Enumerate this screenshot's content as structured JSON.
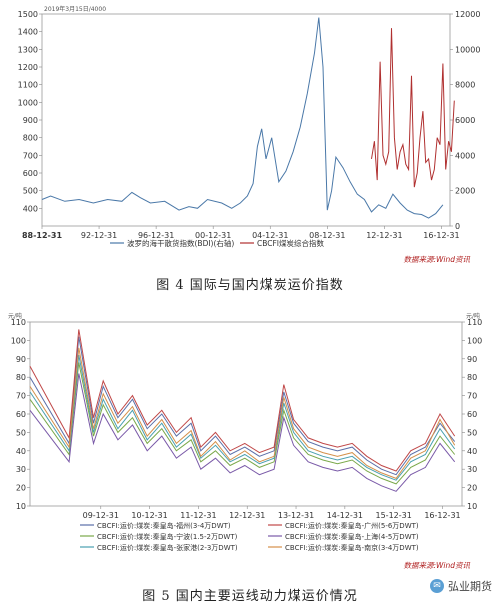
{
  "chart_data": [
    {
      "type": "line",
      "title": "图4 国际与国内煤炭运价指数",
      "top_note": "2019年3月15日/4000",
      "x_ticks": [
        "88-12-31",
        "92-12-31",
        "96-12-31",
        "00-12-31",
        "04-12-31",
        "08-12-31",
        "12-12-31",
        "16-12-31"
      ],
      "y_left": {
        "min": 300,
        "max": 1500,
        "ticks": [
          400,
          500,
          600,
          700,
          800,
          900,
          1000,
          1100,
          1200,
          1300,
          1400,
          1500
        ]
      },
      "y_right": {
        "min": 0,
        "max": 12000,
        "ticks": [
          0,
          2000,
          4000,
          6000,
          8000,
          10000,
          12000
        ]
      },
      "grid": false,
      "legend_position": "bottom",
      "source": "数据来源:Wind资讯",
      "series": [
        {
          "name": "波罗的海干散货指数(BDI)(右轴)",
          "axis": "right",
          "color": "#4a78a8",
          "x": [
            1988.9,
            1989.5,
            1990.5,
            1991.5,
            1992.5,
            1993.5,
            1994.5,
            1995.2,
            1995.8,
            1996.5,
            1997.5,
            1998.5,
            1999.2,
            1999.8,
            2000.5,
            2001.5,
            2002.2,
            2002.8,
            2003.3,
            2003.7,
            2004.0,
            2004.3,
            2004.6,
            2005.0,
            2005.5,
            2006.0,
            2006.5,
            2007.0,
            2007.5,
            2008.0,
            2008.3,
            2008.6,
            2008.9,
            2009.2,
            2009.5,
            2010.0,
            2010.5,
            2011.0,
            2011.5,
            2012.0,
            2012.5,
            2013.0,
            2013.5,
            2014.0,
            2014.5,
            2015.0,
            2015.5,
            2016.0,
            2016.5,
            2017.0
          ],
          "y": [
            1500,
            1700,
            1400,
            1500,
            1300,
            1500,
            1400,
            1900,
            1600,
            1300,
            1400,
            900,
            1100,
            1000,
            1500,
            1300,
            1000,
            1300,
            1700,
            2400,
            4500,
            5500,
            3800,
            5000,
            2500,
            3100,
            4200,
            5600,
            7500,
            9800,
            11800,
            9000,
            900,
            2000,
            3900,
            3300,
            2500,
            1800,
            1500,
            800,
            1200,
            1000,
            1800,
            1300,
            900,
            700,
            650,
            450,
            700,
            1200
          ]
        },
        {
          "name": "CBCFI煤炭综合指数",
          "axis": "left",
          "color": "#b03030",
          "x": [
            2012.0,
            2012.2,
            2012.4,
            2012.6,
            2012.8,
            2013.0,
            2013.2,
            2013.4,
            2013.6,
            2013.8,
            2014.0,
            2014.2,
            2014.4,
            2014.6,
            2014.8,
            2015.0,
            2015.2,
            2015.4,
            2015.6,
            2015.8,
            2016.0,
            2016.2,
            2016.4,
            2016.6,
            2016.8,
            2017.0,
            2017.2,
            2017.4,
            2017.6,
            2017.8
          ],
          "y": [
            680,
            780,
            560,
            1230,
            700,
            650,
            720,
            1420,
            800,
            620,
            720,
            760,
            650,
            620,
            1150,
            520,
            600,
            800,
            950,
            660,
            680,
            560,
            620,
            800,
            760,
            1220,
            620,
            780,
            720,
            1010
          ]
        }
      ]
    },
    {
      "type": "line",
      "title": "图5 国内主要运线动力煤运价情况",
      "y_label_left": "元/吨",
      "y_label_right": "元/吨",
      "x_ticks": [
        "09-12-31",
        "10-12-31",
        "11-12-31",
        "12-12-31",
        "13-12-31",
        "14-12-31",
        "15-12-31",
        "16-12-31"
      ],
      "y_left": {
        "min": 10,
        "max": 110,
        "ticks": [
          10,
          20,
          30,
          40,
          50,
          60,
          70,
          80,
          90,
          100,
          110
        ]
      },
      "y_right": {
        "min": 10,
        "max": 110,
        "ticks": [
          10,
          20,
          30,
          40,
          50,
          60,
          70,
          80,
          90,
          100,
          110
        ]
      },
      "grid": false,
      "legend_position": "bottom",
      "source": "数据来源:Wind资讯",
      "series": [
        {
          "name": "CBCFI:运价:煤炭:秦皇岛-福州(3-4万DWT)",
          "color": "#5b6fa8",
          "x": [
            2008.5,
            2009.3,
            2009.5,
            2009.8,
            2010.0,
            2010.3,
            2010.6,
            2010.9,
            2011.2,
            2011.5,
            2011.8,
            2012.0,
            2012.3,
            2012.6,
            2012.9,
            2013.2,
            2013.5,
            2013.7,
            2013.9,
            2014.2,
            2014.5,
            2014.8,
            2015.1,
            2015.4,
            2015.7,
            2016.0,
            2016.3,
            2016.6,
            2016.9,
            2017.2
          ],
          "y": [
            80,
            44,
            102,
            55,
            75,
            58,
            68,
            52,
            60,
            48,
            55,
            40,
            48,
            38,
            42,
            37,
            40,
            72,
            55,
            45,
            42,
            40,
            42,
            35,
            30,
            27,
            38,
            42,
            55,
            45
          ]
        },
        {
          "name": "CBCFI:运价:煤炭:秦皇岛-广州(5-6万DWT)",
          "color": "#c04848",
          "x": [
            2008.5,
            2009.3,
            2009.5,
            2009.8,
            2010.0,
            2010.3,
            2010.6,
            2010.9,
            2011.2,
            2011.5,
            2011.8,
            2012.0,
            2012.3,
            2012.6,
            2012.9,
            2013.2,
            2013.5,
            2013.7,
            2013.9,
            2014.2,
            2014.5,
            2014.8,
            2015.1,
            2015.4,
            2015.7,
            2016.0,
            2016.3,
            2016.6,
            2016.9,
            2017.2
          ],
          "y": [
            86,
            47,
            106,
            58,
            78,
            60,
            70,
            54,
            62,
            50,
            58,
            42,
            50,
            40,
            44,
            39,
            42,
            76,
            57,
            47,
            44,
            42,
            44,
            37,
            32,
            29,
            40,
            44,
            60,
            48
          ]
        },
        {
          "name": "CBCFI:运价:煤炭:秦皇岛-宁波(1.5-2万DWT)",
          "color": "#7aa84a",
          "x": [
            2008.5,
            2009.3,
            2009.5,
            2009.8,
            2010.0,
            2010.3,
            2010.6,
            2010.9,
            2011.2,
            2011.5,
            2011.8,
            2012.0,
            2012.3,
            2012.6,
            2012.9,
            2013.2,
            2013.5,
            2013.7,
            2013.9,
            2014.2,
            2014.5,
            2014.8,
            2015.1,
            2015.4,
            2015.7,
            2016.0,
            2016.3,
            2016.6,
            2016.9,
            2017.2
          ],
          "y": [
            68,
            38,
            88,
            48,
            65,
            50,
            58,
            44,
            52,
            40,
            46,
            34,
            40,
            32,
            36,
            31,
            34,
            62,
            47,
            38,
            35,
            33,
            35,
            29,
            25,
            22,
            31,
            35,
            48,
            38
          ]
        },
        {
          "name": "CBCFI:运价:煤炭:秦皇岛-上海(4-5万DWT)",
          "color": "#7a5aa8",
          "x": [
            2008.5,
            2009.3,
            2009.5,
            2009.8,
            2010.0,
            2010.3,
            2010.6,
            2010.9,
            2011.2,
            2011.5,
            2011.8,
            2012.0,
            2012.3,
            2012.6,
            2012.9,
            2013.2,
            2013.5,
            2013.7,
            2013.9,
            2014.2,
            2014.5,
            2014.8,
            2015.1,
            2015.4,
            2015.7,
            2016.0,
            2016.3,
            2016.6,
            2016.9,
            2017.2
          ],
          "y": [
            62,
            34,
            82,
            44,
            60,
            46,
            54,
            40,
            48,
            36,
            42,
            30,
            36,
            28,
            32,
            27,
            30,
            58,
            43,
            34,
            31,
            29,
            31,
            25,
            21,
            18,
            27,
            31,
            44,
            34
          ]
        },
        {
          "name": "CBCFI:运价:煤炭:秦皇岛-张家港(2-3万DWT)",
          "color": "#4aa0b0",
          "x": [
            2008.5,
            2009.3,
            2009.5,
            2009.8,
            2010.0,
            2010.3,
            2010.6,
            2010.9,
            2011.2,
            2011.5,
            2011.8,
            2012.0,
            2012.3,
            2012.6,
            2012.9,
            2013.2,
            2013.5,
            2013.7,
            2013.9,
            2014.2,
            2014.5,
            2014.8,
            2015.1,
            2015.4,
            2015.7,
            2016.0,
            2016.3,
            2016.6,
            2016.9,
            2017.2
          ],
          "y": [
            72,
            40,
            92,
            50,
            68,
            52,
            62,
            46,
            55,
            42,
            49,
            36,
            43,
            34,
            38,
            33,
            36,
            66,
            50,
            40,
            37,
            35,
            37,
            31,
            27,
            24,
            34,
            38,
            52,
            41
          ]
        },
        {
          "name": "CBCFI:运价:煤炭:秦皇岛-南京(3-4万DWT)",
          "color": "#d4904a",
          "x": [
            2008.5,
            2009.3,
            2009.5,
            2009.8,
            2010.0,
            2010.3,
            2010.6,
            2010.9,
            2011.2,
            2011.5,
            2011.8,
            2012.0,
            2012.3,
            2012.6,
            2012.9,
            2013.2,
            2013.5,
            2013.7,
            2013.9,
            2014.2,
            2014.5,
            2014.8,
            2015.1,
            2015.4,
            2015.7,
            2016.0,
            2016.3,
            2016.6,
            2016.9,
            2017.2
          ],
          "y": [
            75,
            42,
            96,
            52,
            71,
            55,
            64,
            48,
            57,
            44,
            51,
            37,
            45,
            35,
            40,
            34,
            37,
            69,
            52,
            42,
            39,
            37,
            39,
            32,
            28,
            25,
            36,
            40,
            57,
            43
          ]
        }
      ]
    }
  ],
  "captions": {
    "fig4": "图 4  国际与国内煤炭运价指数",
    "fig5": "图 5  国内主要运线动力煤运价情况"
  },
  "watermark": {
    "text": "弘业期货",
    "icon": "wechat-icon"
  }
}
